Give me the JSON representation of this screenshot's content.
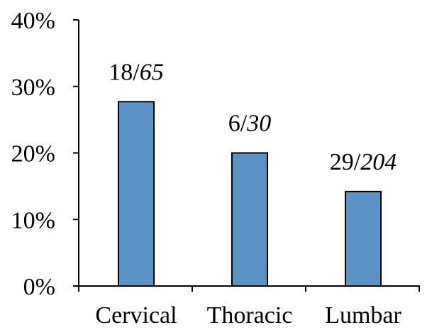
{
  "chart_data": {
    "type": "bar",
    "categories": [
      "Cervical",
      "Thoracic",
      "Lumbar"
    ],
    "values": [
      27.7,
      20.0,
      14.2
    ],
    "data_labels": [
      {
        "numerator": "18",
        "denominator": "65"
      },
      {
        "numerator": "6",
        "denominator": "30"
      },
      {
        "numerator": "29",
        "denominator": "204"
      }
    ],
    "title": "",
    "xlabel": "",
    "ylabel": "",
    "ylim": [
      0,
      40
    ],
    "y_ticks": [
      {
        "value": 0,
        "label": "0%"
      },
      {
        "value": 10,
        "label": "10%"
      },
      {
        "value": 20,
        "label": "20%"
      },
      {
        "value": 30,
        "label": "30%"
      },
      {
        "value": 40,
        "label": "40%"
      }
    ],
    "grid": false,
    "legend": "none",
    "bar_color": "#5b93c6"
  }
}
